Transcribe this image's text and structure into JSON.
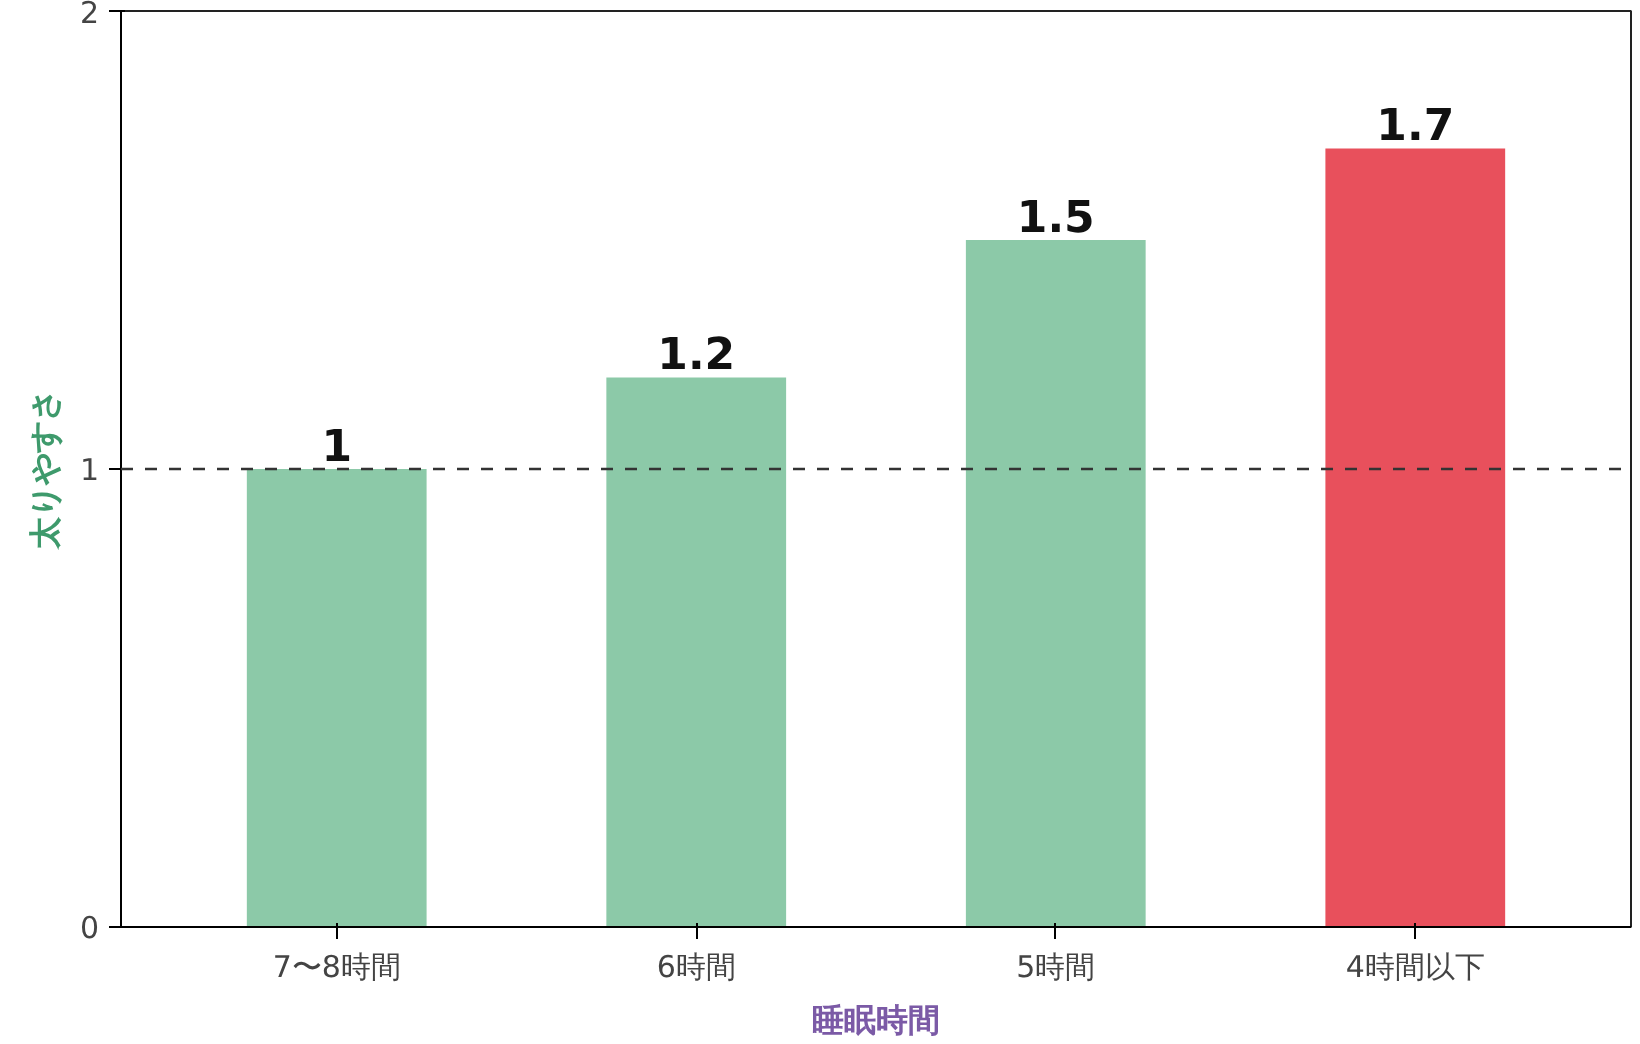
{
  "chart_data": {
    "type": "bar",
    "xlabel": "睡眠時間",
    "ylabel": "太りやすさ",
    "categories": [
      "7〜8時間",
      "6時間",
      "5時間",
      "4時間以下"
    ],
    "values": [
      1,
      1.2,
      1.5,
      1.7
    ],
    "colors": [
      "#8cc9a8",
      "#8cc9a8",
      "#8cc9a8",
      "#e8505c"
    ],
    "ylim": [
      0,
      2
    ],
    "yticks": [
      0,
      1,
      2
    ],
    "grid": false,
    "data_labels": true,
    "ref_lines": [
      {
        "axis": "y",
        "value": 1,
        "line_style": "dashed",
        "color": "#333333"
      }
    ]
  }
}
